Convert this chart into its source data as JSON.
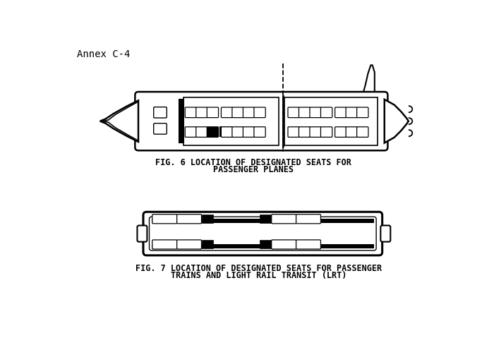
{
  "bg_color": "#ffffff",
  "annex_text": "Annex C-4",
  "fig6_caption_line1": "FIG. 6 LOCATION OF DESIGNATED SEATS FOR",
  "fig6_caption_line2": "PASSENGER PLANES",
  "fig7_caption_line1": "FIG. 7 LOCATION OF DESIGNATED SEATS FOR PASSENGER",
  "fig7_caption_line2": "TRAINS AND LIGHT RAIL TRANSIT (LRT)",
  "caption_fontsize": 8.5,
  "annex_fontsize": 10,
  "font_family": "monospace"
}
